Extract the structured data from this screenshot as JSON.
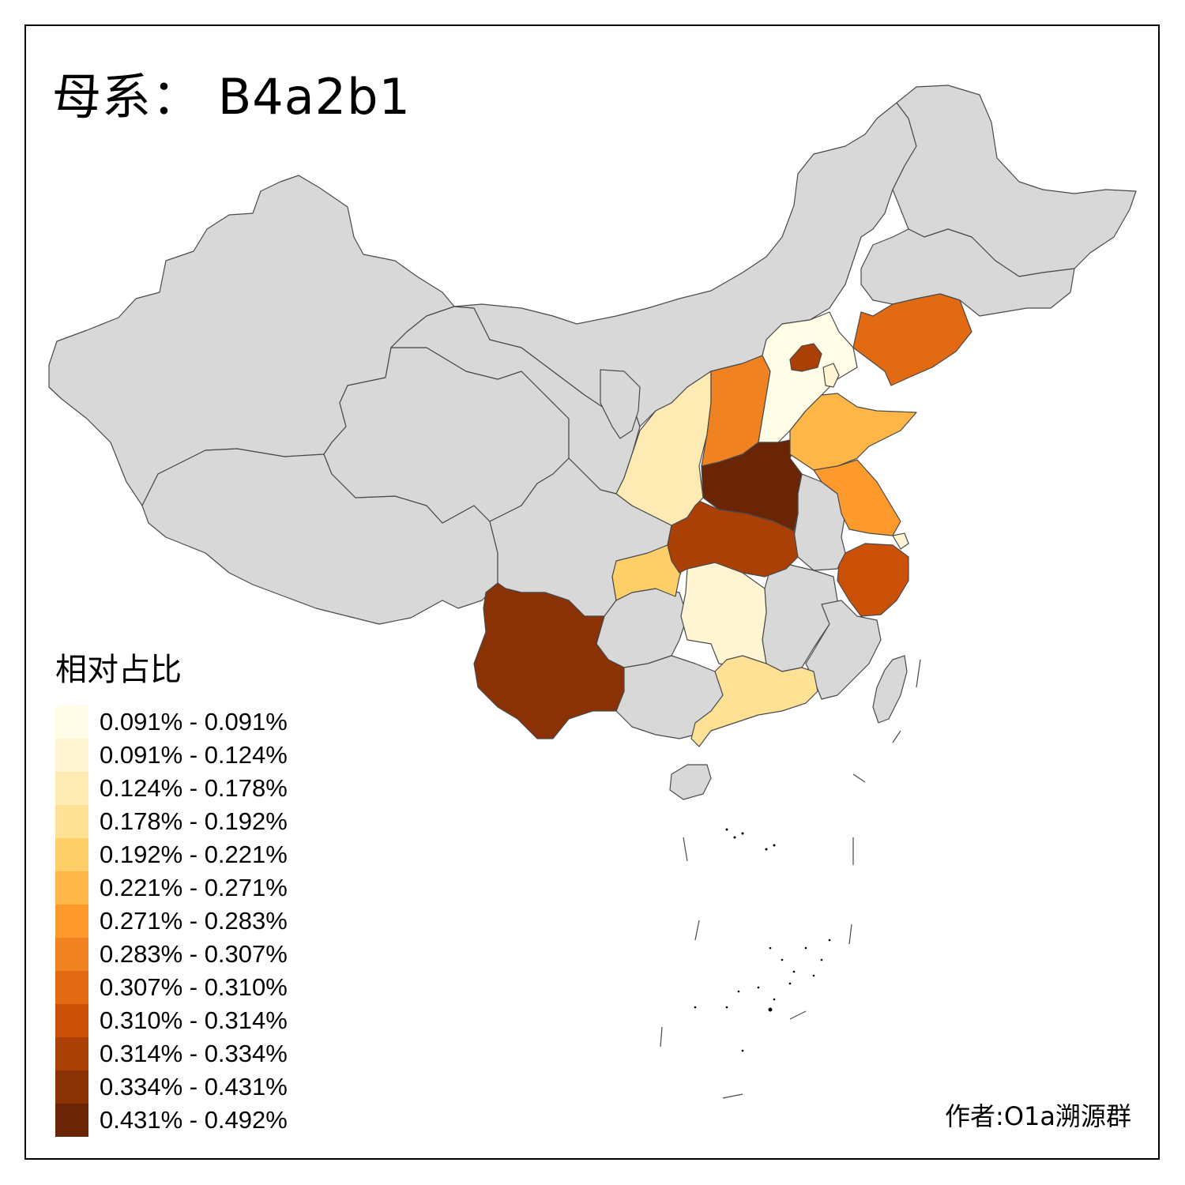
{
  "title": "母系： B4a2b1",
  "author": "作者:O1a溯源群",
  "legend": {
    "title": "相对占比",
    "items": [
      {
        "label": "0.091% - 0.091%",
        "color": "#fffde6"
      },
      {
        "label": "0.091% - 0.124%",
        "color": "#fff5d3"
      },
      {
        "label": "0.124% - 0.178%",
        "color": "#feebb4"
      },
      {
        "label": "0.178% - 0.192%",
        "color": "#fee194"
      },
      {
        "label": "0.192% - 0.221%",
        "color": "#fece69"
      },
      {
        "label": "0.221% - 0.271%",
        "color": "#feb646"
      },
      {
        "label": "0.271% - 0.283%",
        "color": "#fe9a2c"
      },
      {
        "label": "0.283% - 0.307%",
        "color": "#f08222"
      },
      {
        "label": "0.307% - 0.310%",
        "color": "#e26a12"
      },
      {
        "label": "0.310% - 0.314%",
        "color": "#cc5108"
      },
      {
        "label": "0.314% - 0.334%",
        "color": "#ab4006"
      },
      {
        "label": "0.334% - 0.431%",
        "color": "#8a3105"
      },
      {
        "label": "0.431% - 0.492%",
        "color": "#6a2406"
      }
    ]
  },
  "map": {
    "no_data_color": "#d8d8d8",
    "regions": [
      {
        "name": "beijing",
        "color": "#ab4006"
      },
      {
        "name": "tianjin",
        "color": "#fff5d3"
      },
      {
        "name": "hebei",
        "color": "#fffde6"
      },
      {
        "name": "liaoning",
        "color": "#e26a12"
      },
      {
        "name": "shanxi",
        "color": "#f08222"
      },
      {
        "name": "shaanxi",
        "color": "#feebb4"
      },
      {
        "name": "shandong",
        "color": "#feb646"
      },
      {
        "name": "henan",
        "color": "#6a2406"
      },
      {
        "name": "jiangsu",
        "color": "#fe9a2c"
      },
      {
        "name": "hubei",
        "color": "#ab4006"
      },
      {
        "name": "chongqing",
        "color": "#fece69"
      },
      {
        "name": "hunan",
        "color": "#fff5d3"
      },
      {
        "name": "zhejiang",
        "color": "#cc5108"
      },
      {
        "name": "shanghai",
        "color": "#fff5d3"
      },
      {
        "name": "guangdong",
        "color": "#fee194"
      },
      {
        "name": "yunnan",
        "color": "#8a3105"
      }
    ]
  }
}
